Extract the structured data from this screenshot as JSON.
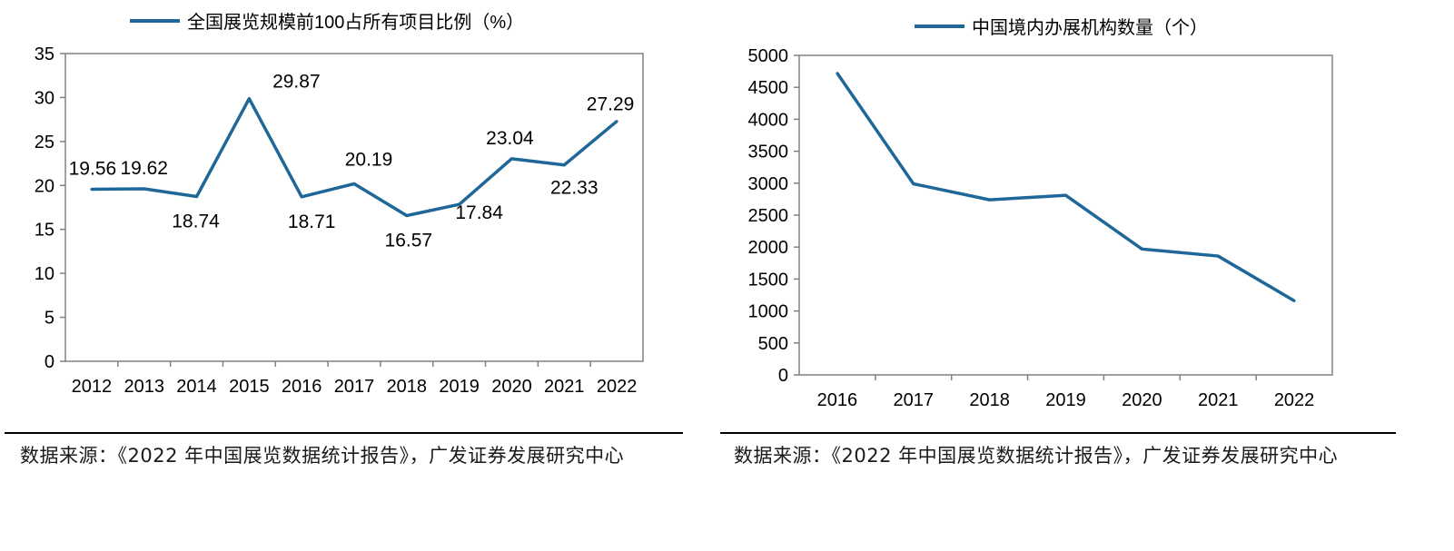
{
  "colors": {
    "line": "#1f6798",
    "axis": "#808080",
    "text": "#000000"
  },
  "charts": [
    {
      "legend": "全国展览规模前100占所有项目比例（%）",
      "source": "数据来源：《2022 年中国展览数据统计报告》，广发证券发展研究中心"
    },
    {
      "legend": "中国境内办展机构数量（个）",
      "source": "数据来源：《2022 年中国展览数据统计报告》，广发证券发展研究中心"
    }
  ],
  "chart_data": [
    {
      "type": "line",
      "title": "",
      "xlabel": "",
      "ylabel": "",
      "x": [
        "2012",
        "2013",
        "2014",
        "2015",
        "2016",
        "2017",
        "2018",
        "2019",
        "2020",
        "2021",
        "2022"
      ],
      "series": [
        {
          "name": "全国展览规模前100占所有项目比例（%）",
          "values": [
            19.56,
            19.62,
            18.74,
            29.87,
            18.71,
            20.19,
            16.57,
            17.84,
            23.04,
            22.33,
            27.29
          ],
          "labels": [
            "19.56",
            "19.62",
            "18.74",
            "29.87",
            "18.71",
            "20.19",
            "16.57",
            "17.84",
            "23.04",
            "22.33",
            "27.29"
          ]
        }
      ],
      "ylim": [
        0,
        35
      ],
      "yticks": [
        0,
        5,
        10,
        15,
        20,
        25,
        30,
        35
      ],
      "grid": false,
      "legend_position": "top-center"
    },
    {
      "type": "line",
      "title": "",
      "xlabel": "",
      "ylabel": "",
      "x": [
        "2016",
        "2017",
        "2018",
        "2019",
        "2020",
        "2021",
        "2022"
      ],
      "series": [
        {
          "name": "中国境内办展机构数量（个）",
          "values": [
            4720,
            2990,
            2740,
            2810,
            1970,
            1860,
            1160
          ]
        }
      ],
      "ylim": [
        0,
        5000
      ],
      "yticks": [
        0,
        500,
        1000,
        1500,
        2000,
        2500,
        3000,
        3500,
        4000,
        4500,
        5000
      ],
      "grid": false,
      "legend_position": "top-center"
    }
  ]
}
